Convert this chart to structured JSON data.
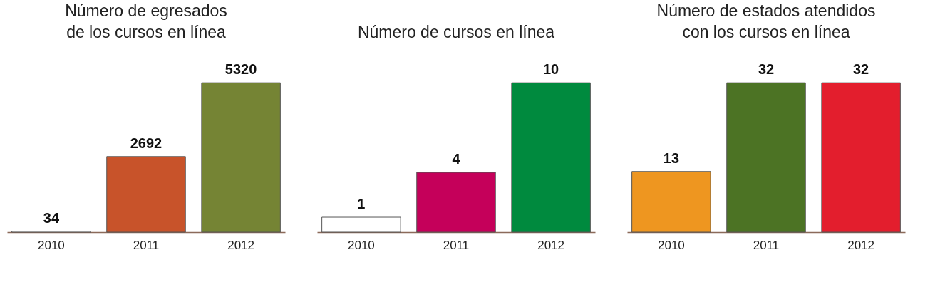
{
  "chart_data": [
    {
      "type": "bar",
      "title": "Número de egresados\nde los cursos en línea",
      "categories": [
        "2010",
        "2011",
        "2012"
      ],
      "values": [
        34,
        2692,
        5320
      ],
      "colors": [
        "#ffffff",
        "#c8532a",
        "#758434"
      ],
      "data_labels": true
    },
    {
      "type": "bar",
      "title": "Número de cursos en línea",
      "categories": [
        "2010",
        "2011",
        "2012"
      ],
      "values": [
        1,
        4,
        10
      ],
      "colors": [
        "#ffffff",
        "#c5005a",
        "#008a3e"
      ],
      "data_labels": true
    },
    {
      "type": "bar",
      "title": "Número de estados atendidos\ncon los cursos en línea",
      "categories": [
        "2010",
        "2011",
        "2012"
      ],
      "values": [
        13,
        32,
        32
      ],
      "colors": [
        "#ee9620",
        "#4c7324",
        "#e31e2d"
      ],
      "data_labels": true
    }
  ]
}
